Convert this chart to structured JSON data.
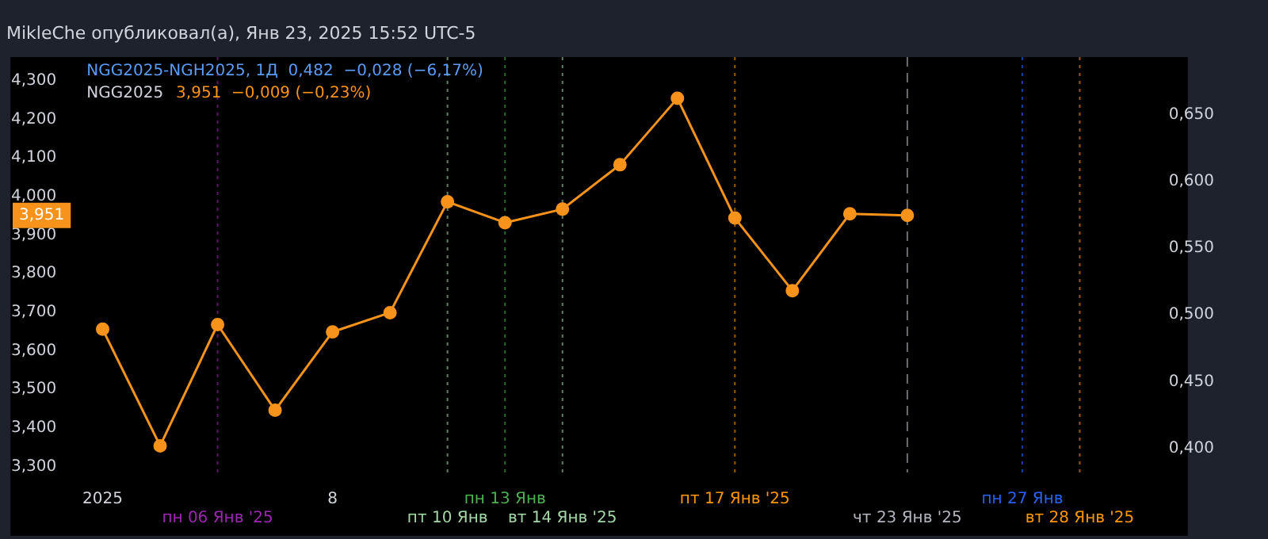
{
  "chart_data": {
    "type": "line",
    "title": "MikleChe опубликовал(а), Янв 23, 2025 15:52 UTC-5",
    "categories": [
      "2025",
      null,
      "пн 06 Янв '25",
      null,
      "8",
      null,
      "пт 10 Янв",
      "пн 13 Янв",
      "вт 14 Янв '25",
      null,
      null,
      "пт 17 Янв '25",
      null,
      null,
      "чт 23 Янв '25",
      null,
      "пн 27 Янв",
      "вт 28 Янв '25"
    ],
    "series": [
      {
        "name": "NGG2025",
        "color": "#f7931a",
        "values": [
          3.656,
          3.354,
          3.668,
          3.446,
          3.649,
          3.699,
          3.986,
          3.932,
          3.967,
          4.082,
          4.254,
          3.944,
          3.756,
          3.955,
          3.951,
          null,
          null,
          null
        ]
      }
    ],
    "ylim": [
      3.285,
      4.361
    ],
    "yticks": [
      {
        "value": 3.3,
        "label": "3,300"
      },
      {
        "value": 3.4,
        "label": "3,400"
      },
      {
        "value": 3.5,
        "label": "3,500"
      },
      {
        "value": 3.6,
        "label": "3,600"
      },
      {
        "value": 3.7,
        "label": "3,700"
      },
      {
        "value": 3.8,
        "label": "3,800"
      },
      {
        "value": 3.9,
        "label": "3,900"
      },
      {
        "value": 4.0,
        "label": "4,000"
      },
      {
        "value": 4.1,
        "label": "4,100"
      },
      {
        "value": 4.2,
        "label": "4,200"
      },
      {
        "value": 4.3,
        "label": "4,300"
      }
    ],
    "y2lim": [
      0.382,
      0.693
    ],
    "y2ticks": [
      {
        "value": 0.4,
        "label": "0,400"
      },
      {
        "value": 0.45,
        "label": "0,450"
      },
      {
        "value": 0.5,
        "label": "0,500"
      },
      {
        "value": 0.55,
        "label": "0,550"
      },
      {
        "value": 0.6,
        "label": "0,600"
      },
      {
        "value": 0.65,
        "label": "0,650"
      }
    ],
    "marker": "circle",
    "line_style": "solid",
    "grid": false,
    "legend": "top left",
    "ref_lines": [
      {
        "axis": "x",
        "value": "пн 06 Янв '25",
        "color": "#9c27b0",
        "line_style": "dotted"
      },
      {
        "axis": "x",
        "value": "пт 10 Янв",
        "color": "#a5d6a7",
        "line_style": "dotted"
      },
      {
        "axis": "x",
        "value": "пн 13 Янв",
        "color": "#4caf50",
        "line_style": "dotted"
      },
      {
        "axis": "x",
        "value": "вт 14 Янв '25",
        "color": "#a5d6a7",
        "line_style": "dotted"
      },
      {
        "axis": "x",
        "value": "пт 17 Янв '25",
        "color": "#ff9800",
        "line_style": "dotted"
      },
      {
        "axis": "x",
        "value": "чт 23 Янв '25",
        "color": "#b2b5be",
        "line_style": "dashed"
      },
      {
        "axis": "x",
        "value": "пн 27 Янв",
        "color": "#2962ff",
        "line_style": "dotted"
      },
      {
        "axis": "x",
        "value": "вт 28 Янв '25",
        "color": "#ff9800",
        "line_style": "dotted"
      }
    ],
    "annotations": [
      "NGG2025-NGH2025, 1Д  0,482  −0,028 (−6,17%)",
      "3,951  −0,009 (−0,23%)",
      "3,951"
    ]
  }
}
